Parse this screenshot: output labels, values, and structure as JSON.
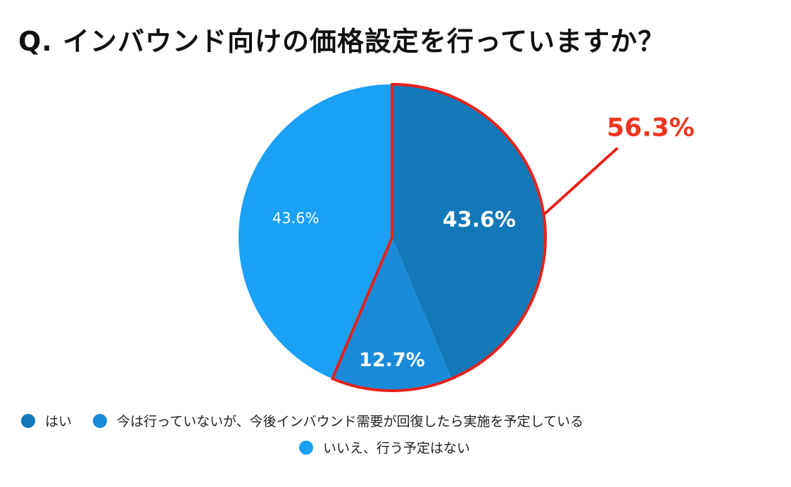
{
  "title": "Q. インバウンド向けの価格設定を行っていますか？",
  "chart_data": {
    "type": "pie",
    "slices": [
      {
        "label": "はい",
        "value": 43.6,
        "value_label": "43.6%",
        "color": "#1378b8",
        "label_color": "#ffffff",
        "label_bold": true
      },
      {
        "label": "今は行っていないが、今後インバウンド需要が回復したら実施を予定している",
        "value": 12.7,
        "value_label": "12.7%",
        "color": "#1a8bd9",
        "label_color": "#ffffff",
        "label_bold": true
      },
      {
        "label": "いいえ、行う予定はない",
        "value": 43.6,
        "value_label": "43.6%",
        "color": "#1aa0f5",
        "label_color": "#ffffff",
        "label_bold": false
      }
    ],
    "start_angle_deg": 0,
    "direction": "clockwise",
    "highlight": {
      "slices": [
        0,
        1
      ],
      "label": "56.3%",
      "outline_color": "#e8211a",
      "label_color": "#f0341e"
    },
    "legend_position": "bottom"
  }
}
